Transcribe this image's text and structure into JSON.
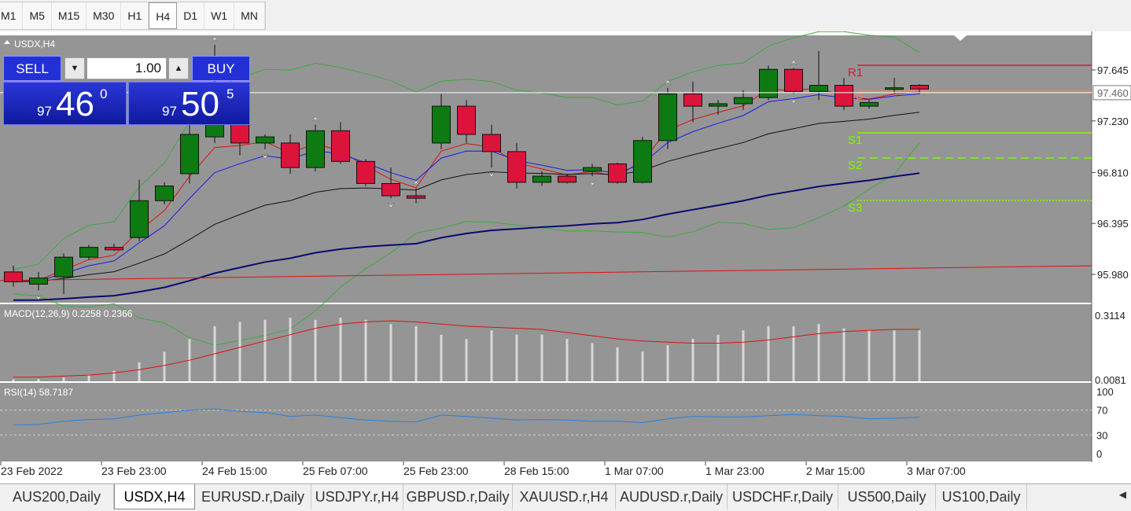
{
  "timeframes": [
    {
      "label": "M1",
      "active": false
    },
    {
      "label": "M5",
      "active": false
    },
    {
      "label": "M15",
      "active": false
    },
    {
      "label": "M30",
      "active": false
    },
    {
      "label": "H1",
      "active": false
    },
    {
      "label": "H4",
      "active": true
    },
    {
      "label": "D1",
      "active": false
    },
    {
      "label": "W1",
      "active": false
    },
    {
      "label": "MN",
      "active": false
    }
  ],
  "symbol_label": "USDX,H4",
  "trade_panel": {
    "sell_label": "SELL",
    "buy_label": "BUY",
    "lot": "1.00",
    "sell_small": "97",
    "sell_big": "46",
    "sell_sup": "0",
    "buy_small": "97",
    "buy_big": "50",
    "buy_sup": "5"
  },
  "indicators": {
    "macd_label": "MACD(12,26,9) 0.2258 0.2366",
    "rsi_label": "RSI(14) 58.7187"
  },
  "price_axis": [
    "97.645",
    "97.460",
    "97.230",
    "96.810",
    "96.395",
    "95.980"
  ],
  "current_price": "97.460",
  "macd_axis": [
    "0.3114",
    "0.0081"
  ],
  "rsi_axis": [
    "100",
    "70",
    "30",
    "0"
  ],
  "pivot_labels": {
    "r1": "R1",
    "pp": "PP",
    "s1": "S1",
    "s2": "S2",
    "s3": "S3"
  },
  "time_axis": [
    "23 Feb 2022",
    "23 Feb 23:00",
    "24 Feb 15:00",
    "25 Feb 07:00",
    "25 Feb 23:00",
    "28 Feb 15:00",
    "1 Mar 07:00",
    "1 Mar 23:00",
    "2 Mar 15:00",
    "3 Mar 07:00"
  ],
  "bottom_tabs": [
    {
      "label": "AUS200,Daily",
      "active": false
    },
    {
      "label": "USDX,H4",
      "active": true
    },
    {
      "label": "EURUSD.r,Daily",
      "active": false
    },
    {
      "label": "USDJPY.r,H4",
      "active": false
    },
    {
      "label": "GBPUSD.r,Daily",
      "active": false
    },
    {
      "label": "XAUUSD.r,H4",
      "active": false
    },
    {
      "label": "AUDUSD.r,Daily",
      "active": false
    },
    {
      "label": "USDCHF.r,Daily",
      "active": false
    },
    {
      "label": "US500,Daily",
      "active": false
    },
    {
      "label": "US100,Daily",
      "active": false
    }
  ],
  "colors": {
    "chart_bg": "#959595",
    "bull": "#0e7a12",
    "bear": "#dc143c",
    "upper_band": "#3fa83f",
    "ma_red": "#e01010",
    "ma_blue": "#1a1aee",
    "ma_black": "#111111",
    "ma_navy": "#0a0a70",
    "rsi_line": "#2a7fe0",
    "r_line": "#dc143c",
    "s_line": "#7cfc00"
  },
  "chart_data": {
    "type": "candlestick",
    "symbol": "USDX",
    "timeframe": "H4",
    "ylim": [
      95.8,
      97.85
    ],
    "candles": [
      {
        "o": 96.0,
        "h": 96.05,
        "l": 95.88,
        "c": 95.92
      },
      {
        "o": 95.9,
        "h": 96.0,
        "l": 95.85,
        "c": 95.95
      },
      {
        "o": 95.96,
        "h": 96.15,
        "l": 95.82,
        "c": 96.12
      },
      {
        "o": 96.12,
        "h": 96.22,
        "l": 96.1,
        "c": 96.2
      },
      {
        "o": 96.2,
        "h": 96.23,
        "l": 96.17,
        "c": 96.18
      },
      {
        "o": 96.28,
        "h": 96.75,
        "l": 96.25,
        "c": 96.58
      },
      {
        "o": 96.58,
        "h": 96.73,
        "l": 96.55,
        "c": 96.7
      },
      {
        "o": 96.8,
        "h": 97.25,
        "l": 96.72,
        "c": 97.12
      },
      {
        "o": 97.1,
        "h": 97.85,
        "l": 97.05,
        "c": 97.3
      },
      {
        "o": 97.22,
        "h": 97.35,
        "l": 96.95,
        "c": 97.05
      },
      {
        "o": 97.05,
        "h": 97.12,
        "l": 97.0,
        "c": 97.1
      },
      {
        "o": 97.05,
        "h": 97.12,
        "l": 96.8,
        "c": 96.85
      },
      {
        "o": 96.85,
        "h": 97.2,
        "l": 96.82,
        "c": 97.15
      },
      {
        "o": 97.15,
        "h": 97.22,
        "l": 96.88,
        "c": 96.9
      },
      {
        "o": 96.9,
        "h": 96.92,
        "l": 96.7,
        "c": 96.72
      },
      {
        "o": 96.72,
        "h": 96.85,
        "l": 96.6,
        "c": 96.62
      },
      {
        "o": 96.62,
        "h": 96.68,
        "l": 96.56,
        "c": 96.6
      },
      {
        "o": 97.05,
        "h": 97.45,
        "l": 97.0,
        "c": 97.35
      },
      {
        "o": 97.35,
        "h": 97.4,
        "l": 97.05,
        "c": 97.12
      },
      {
        "o": 97.12,
        "h": 97.2,
        "l": 96.85,
        "c": 96.98
      },
      {
        "o": 96.98,
        "h": 97.05,
        "l": 96.68,
        "c": 96.73
      },
      {
        "o": 96.73,
        "h": 96.82,
        "l": 96.7,
        "c": 96.78
      },
      {
        "o": 96.78,
        "h": 96.8,
        "l": 96.72,
        "c": 96.73
      },
      {
        "o": 96.82,
        "h": 96.88,
        "l": 96.78,
        "c": 96.85
      },
      {
        "o": 96.88,
        "h": 96.89,
        "l": 96.72,
        "c": 96.73
      },
      {
        "o": 96.73,
        "h": 97.1,
        "l": 96.72,
        "c": 97.07
      },
      {
        "o": 97.07,
        "h": 97.5,
        "l": 97.0,
        "c": 97.45
      },
      {
        "o": 97.45,
        "h": 97.55,
        "l": 97.22,
        "c": 97.35
      },
      {
        "o": 97.35,
        "h": 97.4,
        "l": 97.28,
        "c": 97.37
      },
      {
        "o": 97.37,
        "h": 97.48,
        "l": 97.32,
        "c": 97.42
      },
      {
        "o": 97.42,
        "h": 97.68,
        "l": 97.4,
        "c": 97.65
      },
      {
        "o": 97.65,
        "h": 97.66,
        "l": 97.45,
        "c": 97.47
      },
      {
        "o": 97.47,
        "h": 97.8,
        "l": 97.4,
        "c": 97.52
      },
      {
        "o": 97.52,
        "h": 97.58,
        "l": 97.32,
        "c": 97.35
      },
      {
        "o": 97.35,
        "h": 97.4,
        "l": 97.33,
        "c": 97.38
      },
      {
        "o": 97.5,
        "h": 97.58,
        "l": 97.45,
        "c": 97.5
      },
      {
        "o": 97.52,
        "h": 97.53,
        "l": 97.45,
        "c": 97.49
      }
    ],
    "macd_hist": [
      0.01,
      0.012,
      0.018,
      0.03,
      0.05,
      0.09,
      0.14,
      0.2,
      0.26,
      0.28,
      0.29,
      0.3,
      0.29,
      0.3,
      0.29,
      0.27,
      0.26,
      0.22,
      0.2,
      0.24,
      0.22,
      0.22,
      0.2,
      0.18,
      0.16,
      0.14,
      0.17,
      0.2,
      0.22,
      0.24,
      0.26,
      0.26,
      0.27,
      0.25,
      0.24,
      0.24,
      0.24
    ],
    "macd_signal": [
      0.02,
      0.02,
      0.025,
      0.03,
      0.04,
      0.055,
      0.075,
      0.1,
      0.13,
      0.16,
      0.19,
      0.22,
      0.25,
      0.27,
      0.28,
      0.285,
      0.28,
      0.27,
      0.26,
      0.255,
      0.25,
      0.245,
      0.23,
      0.215,
      0.2,
      0.19,
      0.185,
      0.18,
      0.18,
      0.185,
      0.195,
      0.21,
      0.225,
      0.235,
      0.24,
      0.245,
      0.245
    ],
    "rsi": [
      46,
      47,
      52,
      55,
      56,
      62,
      66,
      70,
      72,
      68,
      66,
      60,
      62,
      58,
      54,
      52,
      51,
      62,
      60,
      57,
      54,
      55,
      54,
      52,
      52,
      50,
      56,
      60,
      59,
      59,
      61,
      63,
      61,
      60,
      56,
      57,
      58.7
    ]
  }
}
